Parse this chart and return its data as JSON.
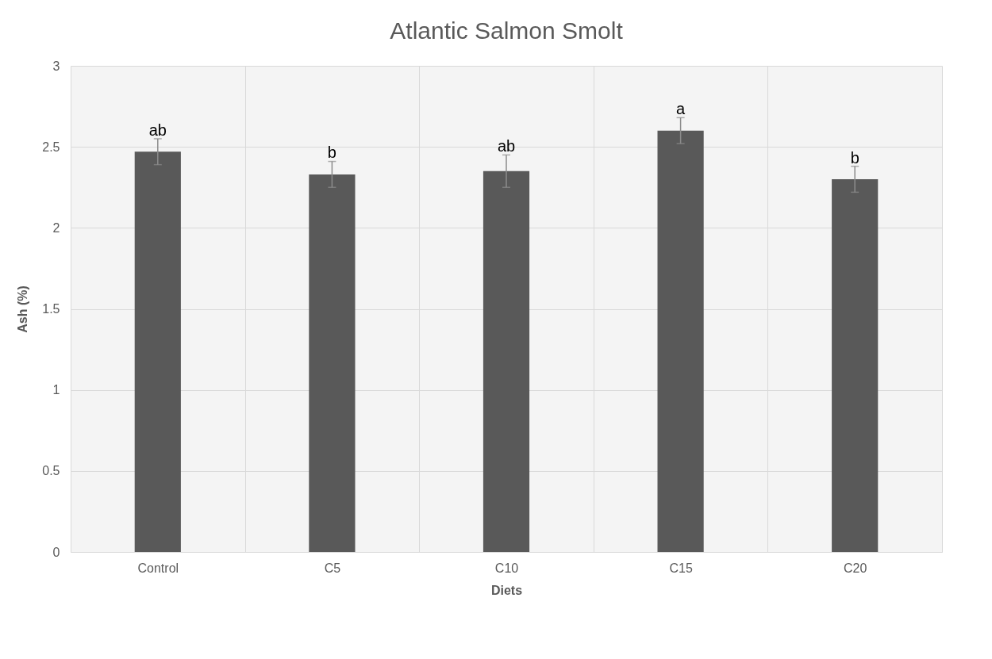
{
  "chart_data": {
    "type": "bar",
    "title": "Atlantic Salmon Smolt",
    "xlabel": "Diets",
    "ylabel": "Ash  (%)",
    "categories": [
      "Control",
      "C5",
      "C10",
      "C15",
      "C20"
    ],
    "values": [
      2.47,
      2.33,
      2.35,
      2.6,
      2.3
    ],
    "errors": [
      0.08,
      0.08,
      0.1,
      0.08,
      0.08
    ],
    "color": "#595959",
    "ylim": [
      0,
      3
    ],
    "yticks": [
      0,
      0.5,
      1,
      1.5,
      2,
      2.5,
      3
    ],
    "grid": true,
    "annotations": [
      {
        "text": "ab",
        "x": "Control",
        "y": 2.57
      },
      {
        "text": "b",
        "x": "C5",
        "y": 2.43
      },
      {
        "text": "ab",
        "x": "C10",
        "y": 2.47
      },
      {
        "text": "a",
        "x": "C15",
        "y": 2.7
      },
      {
        "text": "b",
        "x": "C20",
        "y": 2.4
      }
    ]
  }
}
